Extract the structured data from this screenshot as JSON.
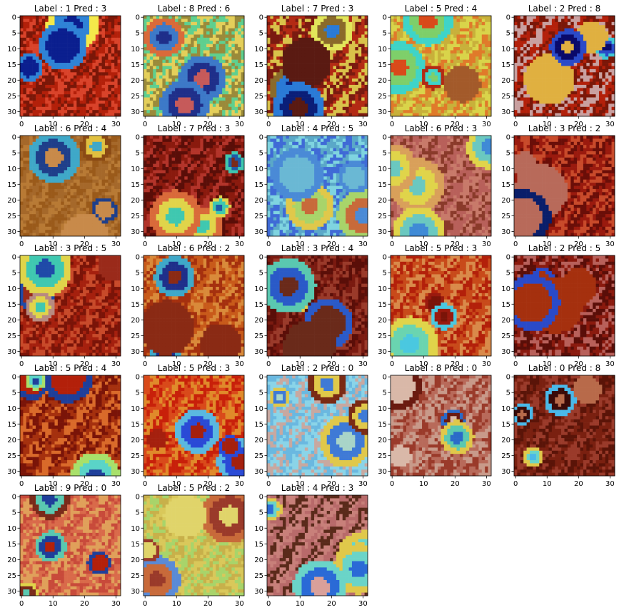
{
  "figure": {
    "panels": [
      {
        "title": "Label : 1 Pred : 3",
        "palette": [
          "#7a1708",
          "#b3200a",
          "#d9432a",
          "#c9826f",
          "#8a2a1c",
          "#f4e94a",
          "#2f83d6",
          "#0b1f8f"
        ]
      },
      {
        "title": "Label : 8 Pred : 6",
        "palette": [
          "#9a8a3a",
          "#5fcf8f",
          "#e4cf5a",
          "#d96a3a",
          "#3d79c8",
          "#1f2f8a",
          "#c65a5a",
          "#6a7a2a"
        ]
      },
      {
        "title": "Label : 7 Pred : 3",
        "palette": [
          "#7a1a10",
          "#b32a14",
          "#d9c24a",
          "#e2e65a",
          "#8a6a2a",
          "#2a7ad6",
          "#0a1e78",
          "#5a1a12"
        ]
      },
      {
        "title": "Label : 5 Pred : 4",
        "palette": [
          "#c8b03a",
          "#d9d44a",
          "#e07a2a",
          "#b32a14",
          "#3fd4c8",
          "#7ecf6a",
          "#d94a1a",
          "#a35a2a"
        ]
      },
      {
        "title": "Label : 2 Pred : 8",
        "palette": [
          "#b3200a",
          "#7a1708",
          "#c9a0a0",
          "#d94a2a",
          "#3fc8d4",
          "#2a4ac8",
          "#0a0a6a",
          "#e0b040"
        ]
      },
      {
        "title": "Label : 6 Pred : 4",
        "palette": [
          "#9a5a1a",
          "#a5682a",
          "#b87a35",
          "#8a4a14",
          "#e0c040",
          "#3fa8c8",
          "#1f3f8a",
          "#c88a4a"
        ]
      },
      {
        "title": "Label : 7 Pred : 3",
        "palette": [
          "#5a0e08",
          "#8a1a0e",
          "#b3342a",
          "#d96a3a",
          "#e0d44a",
          "#3fc8b0",
          "#1f5aa8",
          "#7a2a1a"
        ]
      },
      {
        "title": "Label : 4 Pred : 5",
        "palette": [
          "#5aa8c8",
          "#7fd4e0",
          "#3f6ad6",
          "#e0c84a",
          "#a8d46a",
          "#c86a3a",
          "#4a8ad6",
          "#6ab8d4"
        ]
      },
      {
        "title": "Label : 6 Pred : 3",
        "palette": [
          "#8a3a2a",
          "#b8605a",
          "#c87a6a",
          "#d9a05a",
          "#e0d44a",
          "#6ac8c0",
          "#3f8ad6",
          "#9a4a3a"
        ]
      },
      {
        "title": "Label : 3 Pred : 2",
        "palette": [
          "#6a0e08",
          "#9a1a0e",
          "#c84a2a",
          "#d98a6a",
          "#e0c84a",
          "#2a7ad6",
          "#0a1e6a",
          "#b86a5a"
        ]
      },
      {
        "title": "Label : 3 Pred : 5",
        "palette": [
          "#7a1408",
          "#a5200e",
          "#c84a2a",
          "#b88a80",
          "#e0d44a",
          "#3fc8b0",
          "#1f4aa8",
          "#9a2a1a"
        ]
      },
      {
        "title": "Label : 6 Pred : 2",
        "palette": [
          "#a5300e",
          "#c85a1a",
          "#d98a3a",
          "#e0c84a",
          "#7ad46a",
          "#3fa8c8",
          "#1f2f8a",
          "#8a2a14"
        ]
      },
      {
        "title": "Label : 3 Pred : 4",
        "palette": [
          "#5a0e08",
          "#7a1a10",
          "#9a3a2a",
          "#b8706a",
          "#e0c84a",
          "#5ac8b0",
          "#2a5ac8",
          "#6a2a1a"
        ]
      },
      {
        "title": "Label : 5 Pred : 3",
        "palette": [
          "#b3200a",
          "#c84a1a",
          "#d98a4a",
          "#e0d44a",
          "#6ad4b0",
          "#4ac8e0",
          "#9a1a0e",
          "#7a1408"
        ]
      },
      {
        "title": "Label : 2 Pred : 5",
        "palette": [
          "#5a0e08",
          "#8a1a0e",
          "#b8605a",
          "#d9a09a",
          "#e0c84a",
          "#3fc8d4",
          "#2a4ac8",
          "#a5300e"
        ]
      },
      {
        "title": "Label : 5 Pred : 4",
        "palette": [
          "#7a1408",
          "#a5300e",
          "#d96a2a",
          "#e0d44a",
          "#a8e06a",
          "#5ad4c8",
          "#1f3f9a",
          "#b3200a"
        ]
      },
      {
        "title": "Label : 5 Pred : 3",
        "palette": [
          "#c8200a",
          "#d94a1a",
          "#e08a2a",
          "#e0c44a",
          "#b8a05a",
          "#5ab8e0",
          "#2a4ad6",
          "#a5200e"
        ]
      },
      {
        "title": "Label : 2 Pred : 0",
        "palette": [
          "#c8a8a0",
          "#6ab8e0",
          "#8ad4e8",
          "#4a2010",
          "#7a2a14",
          "#e0c84a",
          "#3f7ad6",
          "#a8d4c8"
        ]
      },
      {
        "title": "Label : 8 Pred : 0",
        "palette": [
          "#9a3a2a",
          "#b86a5a",
          "#c89a8a",
          "#e0c84a",
          "#5ac8b0",
          "#2a6ac8",
          "#6a1a10",
          "#d9b8a8"
        ]
      },
      {
        "title": "Label : 0 Pred : 8",
        "palette": [
          "#5a1408",
          "#7a2010",
          "#9a3a2a",
          "#e0c84a",
          "#6ad4c8",
          "#4ab8e8",
          "#3a0a08",
          "#b86a4a"
        ]
      },
      {
        "title": "Label : 9 Pred : 0",
        "palette": [
          "#c84a3a",
          "#d96a4a",
          "#e0a05a",
          "#e0d44a",
          "#7a2a1a",
          "#5ac8b0",
          "#1f3f9a",
          "#b3200a"
        ]
      },
      {
        "title": "Label : 5 Pred : 2",
        "palette": [
          "#c8b04a",
          "#d9c85a",
          "#a8d46a",
          "#6ac8c8",
          "#5a8ad6",
          "#c86a3a",
          "#9a3a2a",
          "#e0d46a"
        ]
      },
      {
        "title": "Label : 4 Pred : 3",
        "palette": [
          "#c8807a",
          "#b86a6a",
          "#5a2a1a",
          "#7a3a2a",
          "#e0c84a",
          "#6ad4c8",
          "#2a6ad6",
          "#d9a09a"
        ]
      }
    ],
    "xticks": [
      "0",
      "10",
      "20",
      "30"
    ],
    "yticks": [
      "0",
      "5",
      "10",
      "15",
      "20",
      "25",
      "30"
    ]
  }
}
